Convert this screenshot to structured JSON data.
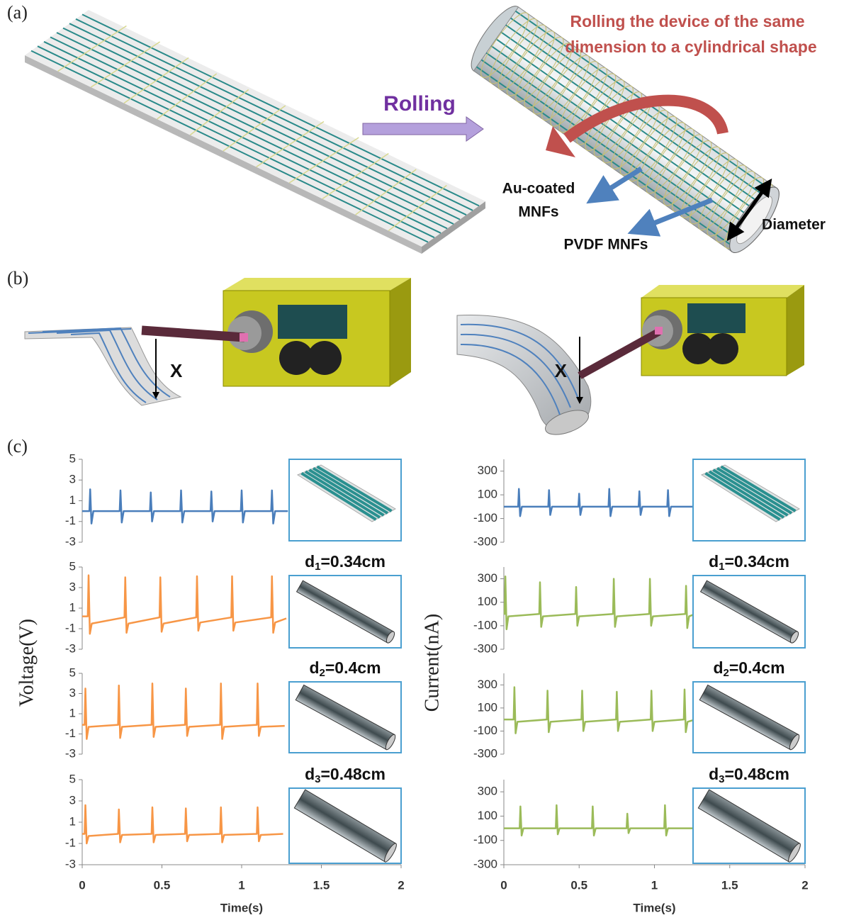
{
  "panel_a": {
    "label": "(a)",
    "caption_lines": [
      "Rolling the device of the same",
      "dimension to a cylindrical shape"
    ],
    "arrow_label": "Rolling",
    "labels": {
      "au_line1": "Au-coated",
      "au_line2": "MNFs",
      "pvdf": "PVDF MNFs",
      "diameter": "Diameter"
    }
  },
  "panel_b": {
    "label": "(b)",
    "x_labels": [
      "X",
      "X"
    ]
  },
  "panel_c": {
    "label": "(c)",
    "left_ylabel": "Voltage(V)",
    "right_ylabel": "Current(nA)"
  },
  "chart_data": [
    {
      "type": "line",
      "color": "#4a7ebb",
      "xlim": [
        0,
        2
      ],
      "ylim": [
        -3,
        5
      ],
      "yticks": [
        5,
        3,
        1,
        -1,
        -3
      ],
      "x": [
        0,
        0.045,
        0.05,
        0.058,
        0.07,
        0.235,
        0.24,
        0.248,
        0.26,
        0.425,
        0.43,
        0.438,
        0.45,
        0.615,
        0.62,
        0.628,
        0.64,
        0.805,
        0.81,
        0.818,
        0.83,
        0.995,
        1,
        1.008,
        1.02,
        1.185,
        1.19,
        1.198,
        1.21,
        1.29
      ],
      "values": [
        0,
        0,
        2.1,
        -1.2,
        0,
        0,
        2,
        -1.1,
        0,
        0,
        1.8,
        -1,
        0,
        0,
        2,
        -1.1,
        0,
        0,
        1.9,
        -1,
        0,
        0,
        2,
        -1.1,
        0,
        0,
        2,
        -1.2,
        0,
        0
      ]
    },
    {
      "type": "line",
      "color": "#f79646",
      "xlim": [
        0,
        2
      ],
      "ylim": [
        -3,
        5
      ],
      "yticks": [
        5,
        3,
        1,
        -1,
        -3
      ],
      "annotation": {
        "base": "d",
        "sub": "1",
        "rest": "=0.34cm"
      },
      "x": [
        0,
        0.035,
        0.04,
        0.048,
        0.06,
        0.265,
        0.27,
        0.278,
        0.29,
        0.485,
        0.49,
        0.498,
        0.51,
        0.715,
        0.72,
        0.728,
        0.74,
        0.935,
        0.94,
        0.948,
        0.96,
        1.185,
        1.19,
        1.198,
        1.21,
        1.28
      ],
      "values": [
        0.2,
        0.2,
        4.2,
        -1.5,
        -0.5,
        0.1,
        4,
        -1.4,
        -0.5,
        0.1,
        4,
        -1.3,
        -0.5,
        0.1,
        4.1,
        -1.2,
        -0.4,
        0.1,
        4.1,
        -1.2,
        -0.4,
        0.1,
        4.1,
        -1.4,
        -0.4,
        0
      ]
    },
    {
      "type": "line",
      "color": "#f79646",
      "xlim": [
        0,
        2
      ],
      "ylim": [
        -3,
        5
      ],
      "yticks": [
        5,
        3,
        1,
        -1,
        -3
      ],
      "annotation": {
        "base": "d",
        "sub": "2",
        "rest": "=0.4cm"
      },
      "x": [
        0,
        0.015,
        0.02,
        0.028,
        0.04,
        0.225,
        0.23,
        0.238,
        0.25,
        0.435,
        0.44,
        0.448,
        0.46,
        0.645,
        0.65,
        0.658,
        0.67,
        0.865,
        0.87,
        0.878,
        0.89,
        1.095,
        1.1,
        1.108,
        1.12,
        1.27
      ],
      "values": [
        -0.1,
        -0.1,
        3.5,
        -1.5,
        -0.3,
        -0.1,
        3.8,
        -1.4,
        -0.3,
        -0.1,
        4,
        -1.3,
        -0.3,
        -0.1,
        3.5,
        -1.2,
        -0.3,
        -0.1,
        4,
        -1.5,
        -0.3,
        -0.1,
        4,
        -1.2,
        -0.3,
        -0.2
      ]
    },
    {
      "type": "line",
      "color": "#f79646",
      "xlim": [
        0,
        2
      ],
      "ylim": [
        -3,
        5
      ],
      "yticks": [
        5,
        3,
        1,
        -1,
        -3
      ],
      "xticks": [
        0,
        0.5,
        1,
        1.5,
        2
      ],
      "x_label": "Time(s)",
      "annotation": {
        "base": "d",
        "sub": "3",
        "rest": "=0.48cm"
      },
      "x": [
        0,
        0.015,
        0.02,
        0.028,
        0.04,
        0.225,
        0.23,
        0.238,
        0.25,
        0.435,
        0.44,
        0.448,
        0.46,
        0.645,
        0.65,
        0.658,
        0.67,
        0.865,
        0.87,
        0.878,
        0.89,
        1.095,
        1.1,
        1.108,
        1.12,
        1.26
      ],
      "values": [
        -0.1,
        -0.1,
        2.6,
        -1,
        -0.3,
        -0.1,
        2.2,
        -0.9,
        -0.2,
        -0.1,
        2.4,
        -0.9,
        -0.2,
        -0.1,
        2.3,
        -0.8,
        -0.2,
        -0.1,
        2.4,
        -0.9,
        -0.2,
        -0.1,
        2.4,
        -0.8,
        -0.2,
        -0.1
      ]
    },
    {
      "type": "line",
      "color": "#4a7ebb",
      "xlim": [
        0,
        2
      ],
      "ylim": [
        -300,
        400
      ],
      "yticks": [
        300,
        100,
        -100,
        -300
      ],
      "x": [
        0,
        0.095,
        0.1,
        0.108,
        0.12,
        0.295,
        0.3,
        0.308,
        0.32,
        0.495,
        0.5,
        0.508,
        0.52,
        0.695,
        0.7,
        0.708,
        0.72,
        0.895,
        0.9,
        0.908,
        0.92,
        1.085,
        1.09,
        1.098,
        1.11,
        1.3
      ],
      "values": [
        0,
        0,
        150,
        -80,
        0,
        0,
        140,
        -70,
        0,
        0,
        110,
        -70,
        0,
        0,
        150,
        -80,
        0,
        0,
        130,
        -70,
        0,
        0,
        140,
        -80,
        0,
        0
      ]
    },
    {
      "type": "line",
      "color": "#9bbb59",
      "xlim": [
        0,
        2
      ],
      "ylim": [
        -300,
        400
      ],
      "yticks": [
        300,
        100,
        -100,
        -300
      ],
      "annotation": {
        "base": "d",
        "sub": "1",
        "rest": "=0.34cm"
      },
      "x": [
        0,
        0.005,
        0.01,
        0.018,
        0.03,
        0.235,
        0.24,
        0.248,
        0.26,
        0.475,
        0.48,
        0.488,
        0.5,
        0.725,
        0.73,
        0.738,
        0.75,
        0.965,
        0.97,
        0.978,
        0.99,
        1.205,
        1.21,
        1.218,
        1.23,
        1.27
      ],
      "values": [
        0,
        0,
        320,
        -130,
        -20,
        0,
        270,
        -110,
        -20,
        0,
        230,
        -100,
        -20,
        0,
        300,
        -110,
        -20,
        0,
        300,
        -100,
        -20,
        0,
        240,
        -120,
        -20,
        0
      ]
    },
    {
      "type": "line",
      "color": "#9bbb59",
      "xlim": [
        0,
        2
      ],
      "ylim": [
        -300,
        400
      ],
      "yticks": [
        300,
        100,
        -100,
        -300
      ],
      "annotation": {
        "base": "d",
        "sub": "2",
        "rest": "=0.4cm"
      },
      "x": [
        0,
        0.065,
        0.07,
        0.078,
        0.09,
        0.285,
        0.29,
        0.298,
        0.31,
        0.515,
        0.52,
        0.528,
        0.54,
        0.745,
        0.75,
        0.758,
        0.77,
        0.975,
        0.98,
        0.988,
        1,
        1.195,
        1.2,
        1.208,
        1.22,
        1.27
      ],
      "values": [
        0,
        0,
        280,
        -120,
        -20,
        0,
        250,
        -110,
        -20,
        0,
        250,
        -100,
        -20,
        0,
        240,
        -100,
        -20,
        0,
        250,
        -100,
        -20,
        0,
        260,
        -110,
        -20,
        0
      ]
    },
    {
      "type": "line",
      "color": "#9bbb59",
      "xlim": [
        0,
        2
      ],
      "ylim": [
        -300,
        400
      ],
      "yticks": [
        300,
        100,
        -100,
        -300
      ],
      "xticks": [
        0,
        0.5,
        1,
        1.5,
        2
      ],
      "x_label": "Time(s)",
      "annotation": {
        "base": "d",
        "sub": "3",
        "rest": "=0.48cm"
      },
      "x": [
        0,
        0.105,
        0.11,
        0.118,
        0.13,
        0.345,
        0.35,
        0.358,
        0.37,
        0.585,
        0.59,
        0.598,
        0.61,
        0.815,
        0.82,
        0.828,
        0.84,
        1.065,
        1.07,
        1.078,
        1.09,
        1.27
      ],
      "values": [
        0,
        0,
        180,
        -60,
        0,
        0,
        190,
        -50,
        0,
        0,
        180,
        -60,
        0,
        0,
        120,
        -40,
        0,
        0,
        190,
        -60,
        0,
        0
      ]
    }
  ]
}
